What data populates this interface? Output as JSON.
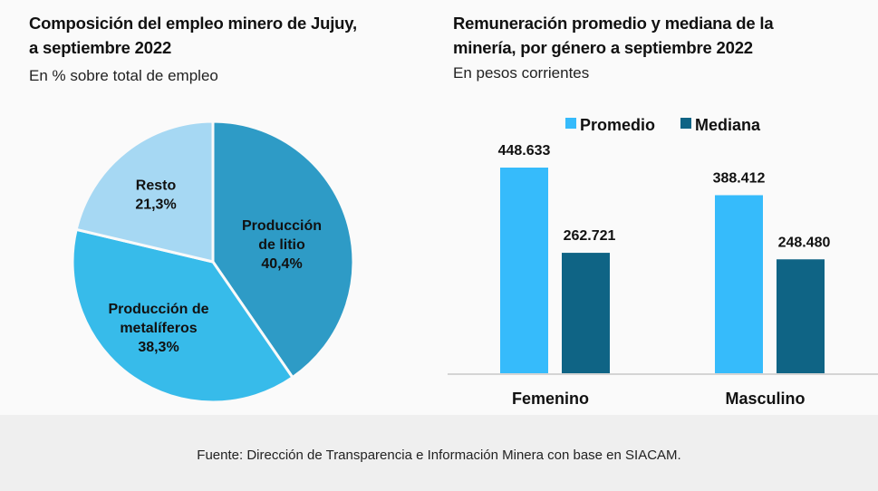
{
  "chart_data": [
    {
      "type": "pie",
      "title": "Composición del empleo minero de Jujuy, a septiembre 2022",
      "subtitle": "En % sobre total de empleo",
      "slices": [
        {
          "label": "Producción de litio",
          "label_lines": [
            "Producción",
            "de litio"
          ],
          "value": 40.4,
          "value_label": "40,4%",
          "color": "#2e9bc6"
        },
        {
          "label": "Producción de metalíferos",
          "label_lines": [
            "Producción de",
            "metalíferos"
          ],
          "value": 38.3,
          "value_label": "38,3%",
          "color": "#37bbea"
        },
        {
          "label": "Resto",
          "label_lines": [
            "Resto"
          ],
          "value": 21.3,
          "value_label": "21,3%",
          "color": "#a6d8f3"
        }
      ]
    },
    {
      "type": "bar",
      "title": "Remuneración promedio y mediana de la minería, por género a septiembre 2022",
      "subtitle": "En pesos corrientes",
      "categories": [
        "Femenino",
        "Masculino"
      ],
      "series": [
        {
          "name": "Promedio",
          "values": [
            448633,
            388412
          ],
          "value_labels": [
            "448.633",
            "388.412"
          ],
          "color": "#36bbfb"
        },
        {
          "name": "Mediana",
          "values": [
            262721,
            248480
          ],
          "value_labels": [
            "262.721",
            "248.480"
          ],
          "color": "#0f6485"
        }
      ],
      "legend": "top-center",
      "grid": false,
      "ylim": [
        0,
        460000
      ]
    }
  ],
  "footer": {
    "source": "Fuente: Dirección de Transparencia e Información Minera con base en SIACAM."
  }
}
